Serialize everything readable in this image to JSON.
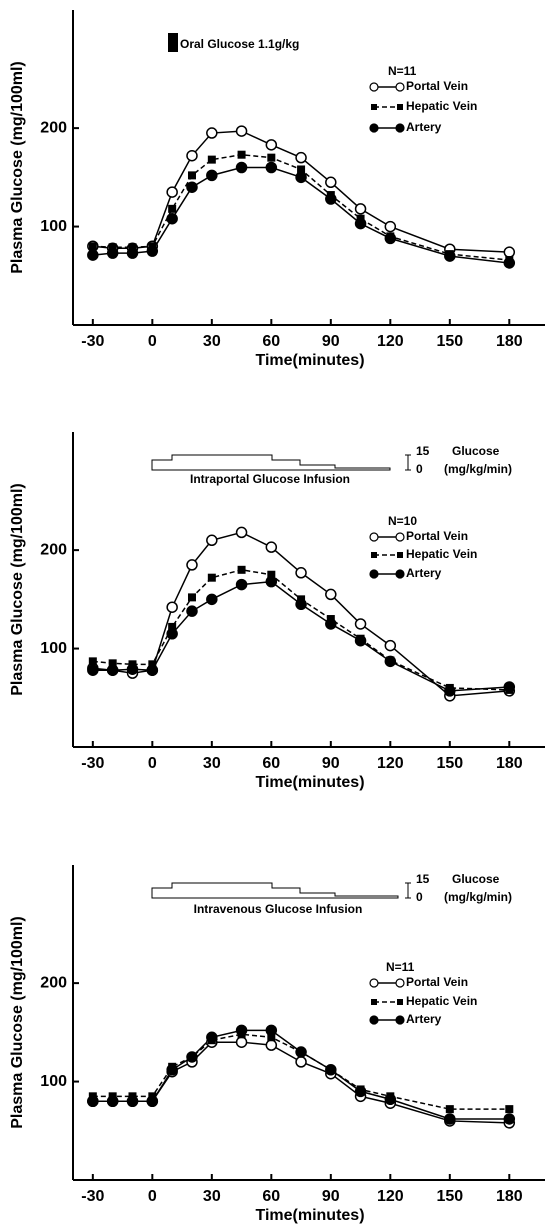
{
  "chart_data": [
    {
      "type": "line",
      "x_label": "Time(minutes)",
      "y_label": "Plasma Glucose (mg/100ml)",
      "annotations": [
        "Oral Glucose  1.1g/kg",
        "N=11"
      ],
      "x": [
        -30,
        -20,
        -10,
        0,
        10,
        20,
        30,
        45,
        60,
        75,
        90,
        105,
        120,
        150,
        180
      ],
      "xlim": [
        -40,
        198
      ],
      "xticks": [
        -30,
        0,
        30,
        60,
        90,
        120,
        150,
        180
      ],
      "ylim": [
        0,
        320
      ],
      "yticks": [
        100,
        200
      ],
      "series": [
        {
          "name": "Portal Vein",
          "color": "#000",
          "marker": "open-circle",
          "dash": false,
          "values": [
            80,
            78,
            78,
            80,
            135,
            172,
            195,
            197,
            183,
            170,
            145,
            118,
            100,
            77,
            74
          ]
        },
        {
          "name": "Hepatic Vein",
          "color": "#000",
          "marker": "square",
          "dash": true,
          "values": [
            80,
            79,
            79,
            80,
            118,
            152,
            168,
            173,
            170,
            158,
            132,
            108,
            90,
            72,
            66
          ]
        },
        {
          "name": "Artery",
          "color": "#000",
          "marker": "filled-circle",
          "dash": false,
          "values": [
            71,
            73,
            73,
            75,
            108,
            140,
            152,
            160,
            160,
            150,
            128,
            103,
            88,
            70,
            63
          ]
        }
      ]
    },
    {
      "type": "line",
      "x_label": "Time(minutes)",
      "y_label": "Plasma Glucose (mg/100ml)",
      "annotations": [
        "15",
        "Glucose",
        "0",
        "(mg/kg/min)",
        "Intraportal Glucose Infusion",
        "N=10"
      ],
      "x": [
        -30,
        -20,
        -10,
        0,
        10,
        20,
        30,
        45,
        60,
        75,
        90,
        105,
        120,
        150,
        180
      ],
      "xlim": [
        -40,
        198
      ],
      "xticks": [
        -30,
        0,
        30,
        60,
        90,
        120,
        150,
        180
      ],
      "ylim": [
        0,
        320
      ],
      "yticks": [
        100,
        200
      ],
      "series": [
        {
          "name": "Portal Vein",
          "color": "#000",
          "marker": "open-circle",
          "dash": false,
          "values": [
            80,
            78,
            75,
            78,
            142,
            185,
            210,
            218,
            203,
            177,
            155,
            125,
            103,
            52,
            57
          ]
        },
        {
          "name": "Hepatic Vein",
          "color": "#000",
          "marker": "square",
          "dash": true,
          "values": [
            87,
            85,
            84,
            84,
            122,
            152,
            172,
            180,
            175,
            150,
            130,
            110,
            88,
            60,
            58
          ]
        },
        {
          "name": "Artery",
          "color": "#000",
          "marker": "filled-circle",
          "dash": false,
          "values": [
            78,
            78,
            79,
            78,
            115,
            138,
            150,
            165,
            168,
            145,
            125,
            108,
            87,
            57,
            61
          ]
        }
      ]
    },
    {
      "type": "line",
      "x_label": "Time(minutes)",
      "y_label": "Plasma Glucose (mg/100ml)",
      "annotations": [
        "15",
        "Glucose",
        "0",
        "(mg/kg/min)",
        "Intravenous Glucose Infusion",
        "N=11"
      ],
      "x": [
        -30,
        -20,
        -10,
        0,
        10,
        20,
        30,
        45,
        60,
        75,
        90,
        105,
        120,
        150,
        180
      ],
      "xlim": [
        -40,
        198
      ],
      "xticks": [
        -30,
        0,
        30,
        60,
        90,
        120,
        150,
        180
      ],
      "ylim": [
        0,
        320
      ],
      "yticks": [
        100,
        200
      ],
      "series": [
        {
          "name": "Portal Vein",
          "color": "#000",
          "marker": "open-circle",
          "dash": false,
          "values": [
            80,
            80,
            80,
            80,
            110,
            120,
            140,
            140,
            137,
            120,
            108,
            85,
            78,
            60,
            58
          ]
        },
        {
          "name": "Hepatic Vein",
          "color": "#000",
          "marker": "square",
          "dash": true,
          "values": [
            85,
            85,
            85,
            85,
            115,
            125,
            142,
            148,
            145,
            130,
            112,
            92,
            85,
            72,
            72
          ]
        },
        {
          "name": "Artery",
          "color": "#000",
          "marker": "filled-circle",
          "dash": false,
          "values": [
            80,
            80,
            80,
            80,
            112,
            125,
            145,
            152,
            152,
            130,
            112,
            90,
            82,
            62,
            62
          ]
        }
      ]
    }
  ]
}
